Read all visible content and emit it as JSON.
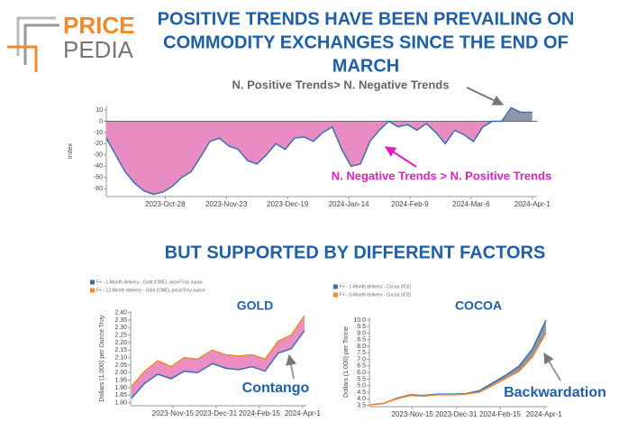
{
  "header": {
    "logo": [
      "PRICE",
      "PEDIA"
    ],
    "title": [
      "POSITIVE TRENDS HAVE BEEN PREVAILING ON",
      "COMMODITY EXCHANGES SINCE THE END OF",
      "MARCH"
    ],
    "subtitle": "BUT SUPPORTED BY DIFFERENT FACTORS"
  },
  "chart_data": [
    {
      "type": "area",
      "ylabel": "Index",
      "x": [
        "2023-Oct-3",
        "2023-Oct-7",
        "2023-Oct-11",
        "2023-Oct-15",
        "2023-Oct-19",
        "2023-Oct-23",
        "2023-Oct-27",
        "2023-Oct-31",
        "2023-Nov-4",
        "2023-Nov-8",
        "2023-Nov-12",
        "2023-Nov-16",
        "2023-Nov-20",
        "2023-Nov-24",
        "2023-Nov-28",
        "2023-Dec-2",
        "2023-Dec-6",
        "2023-Dec-10",
        "2023-Dec-14",
        "2023-Dec-18",
        "2023-Dec-22",
        "2023-Dec-26",
        "2023-Dec-30",
        "2024-Jan-3",
        "2024-Jan-7",
        "2024-Jan-11",
        "2024-Jan-15",
        "2024-Jan-19",
        "2024-Jan-23",
        "2024-Jan-27",
        "2024-Jan-31",
        "2024-Feb-4",
        "2024-Feb-8",
        "2024-Feb-12",
        "2024-Feb-16",
        "2024-Feb-20",
        "2024-Feb-24",
        "2024-Feb-28",
        "2024-Mar-3",
        "2024-Mar-7",
        "2024-Mar-11",
        "2024-Mar-15",
        "2024-Mar-19",
        "2024-Mar-23",
        "2024-Mar-27",
        "2024-Apr-1"
      ],
      "values": [
        -15,
        -30,
        -45,
        -55,
        -62,
        -65,
        -63,
        -58,
        -50,
        -45,
        -32,
        -18,
        -15,
        -22,
        -25,
        -35,
        -38,
        -30,
        -20,
        -25,
        -15,
        -14,
        -18,
        -10,
        -5,
        -25,
        -40,
        -38,
        -18,
        -8,
        0,
        -5,
        -3,
        -8,
        -2,
        -10,
        -20,
        -8,
        -12,
        -18,
        -5,
        0,
        0,
        12,
        8,
        8
      ],
      "line_color": "#3a6fb0",
      "positive_color": "#8e96a8",
      "negative_color": "#e98cc2",
      "xlim": [
        "2023-Oct-3",
        "2024-Apr-3"
      ],
      "ylim": [
        -67,
        14
      ],
      "xticks": [
        "2023-Oct-28",
        "2023-Nov-23",
        "2023-Dec-19",
        "2024-Jan-14",
        "2024-Feb-9",
        "2024-Mar-6",
        "2024-Apr-1"
      ],
      "yticks": [
        10,
        0,
        -10,
        -20,
        -30,
        -40,
        -50,
        -60
      ],
      "annotations": [
        "N. Positive Trends> N. Negative Trends",
        "N. Negative Trends > N. Positive Trends"
      ]
    },
    {
      "type": "line",
      "title": "GOLD",
      "ylabel": "Dollars (1.000) per Ounce Troy",
      "band_color": "#ea8ec4",
      "legend": "top-left",
      "x": [
        "2023-Oct-2",
        "2023-Oct-16",
        "2023-Oct-30",
        "2023-Nov-13",
        "2023-Nov-27",
        "2023-Dec-11",
        "2023-Dec-27",
        "2024-Jan-10",
        "2024-Jan-24",
        "2024-Feb-7",
        "2024-Feb-21",
        "2024-Mar-6",
        "2024-Mar-20",
        "2024-Apr-3"
      ],
      "series": [
        {
          "name": "F+ - 1-Month delivery - Gold (CME), price/Troy ounce",
          "color": "#3a6fb0",
          "values": [
            1.83,
            1.93,
            1.99,
            1.96,
            2.01,
            2.0,
            2.06,
            2.03,
            2.02,
            2.04,
            2.01,
            2.13,
            2.16,
            2.28
          ]
        },
        {
          "name": "F+ - 12-Month delivery - Gold (CME), price/Troy ounce",
          "color": "#f08a2c",
          "values": [
            1.91,
            2.01,
            2.08,
            2.04,
            2.1,
            2.09,
            2.15,
            2.12,
            2.11,
            2.12,
            2.09,
            2.21,
            2.25,
            2.38
          ]
        }
      ],
      "xlim": [
        "2023-Oct-1",
        "2024-Apr-5"
      ],
      "ylim": [
        1.78,
        2.41
      ],
      "xticks": [
        "2023-Nov-15",
        "2023-Dec-31",
        "2024-Feb-15",
        "2024-Apr-1"
      ],
      "yticks": [
        {
          "value": 1.8,
          "label": "1.80"
        },
        1.85,
        {
          "value": 1.9,
          "label": "1.90"
        },
        1.95,
        {
          "value": 2,
          "label": "2.00"
        },
        2.05,
        {
          "value": 2.1,
          "label": "2.10"
        },
        2.15,
        {
          "value": 2.2,
          "label": "2.20"
        },
        2.25,
        {
          "value": 2.3,
          "label": "2.30"
        },
        2.35,
        {
          "value": 2.4,
          "label": "2.40"
        }
      ],
      "annotations": [
        "Contango"
      ]
    },
    {
      "type": "line",
      "title": "COCOA",
      "ylabel": "Dollars (1.000) per Tonne",
      "band_color": "#8e96a8",
      "legend": "top-left",
      "x": [
        "2023-Oct-2",
        "2023-Oct-16",
        "2023-Oct-30",
        "2023-Nov-13",
        "2023-Nov-27",
        "2023-Dec-11",
        "2023-Dec-27",
        "2024-Jan-10",
        "2024-Jan-24",
        "2024-Feb-7",
        "2024-Feb-21",
        "2024-Mar-6",
        "2024-Mar-20",
        "2024-Apr-3"
      ],
      "series": [
        {
          "name": "F+ - 1-Month delivery - Cocoa (ICE)",
          "color": "#3a6fb0",
          "values": [
            3.55,
            3.65,
            4.05,
            4.3,
            4.25,
            4.35,
            4.35,
            4.4,
            4.6,
            5.2,
            5.8,
            6.5,
            7.8,
            10.0
          ]
        },
        {
          "name": "F+ - 5-Month delivery - Cocoa (ICE)",
          "color": "#f08a2c",
          "values": [
            3.55,
            3.65,
            4.0,
            4.25,
            4.2,
            4.3,
            4.3,
            4.35,
            4.5,
            5.0,
            5.55,
            6.1,
            7.2,
            9.0
          ]
        }
      ],
      "xlim": [
        "2023-Oct-1",
        "2024-Apr-5"
      ],
      "ylim": [
        3.4,
        10.2
      ],
      "xticks": [
        "2023-Nov-15",
        "2023-Dec-31",
        "2024-Feb-15",
        "2024-Apr-1"
      ],
      "yticks": [
        3.5,
        {
          "value": 4,
          "label": "4.0"
        },
        4.5,
        {
          "value": 5,
          "label": "5.0"
        },
        5.5,
        {
          "value": 6,
          "label": "6.0"
        },
        6.5,
        {
          "value": 7,
          "label": "7.0"
        },
        7.5,
        {
          "value": 8,
          "label": "8.0"
        },
        8.5,
        {
          "value": 9,
          "label": "9.0"
        },
        9.5,
        {
          "value": 10,
          "label": "10.0"
        }
      ],
      "annotations": [
        "Backwardation"
      ]
    }
  ]
}
